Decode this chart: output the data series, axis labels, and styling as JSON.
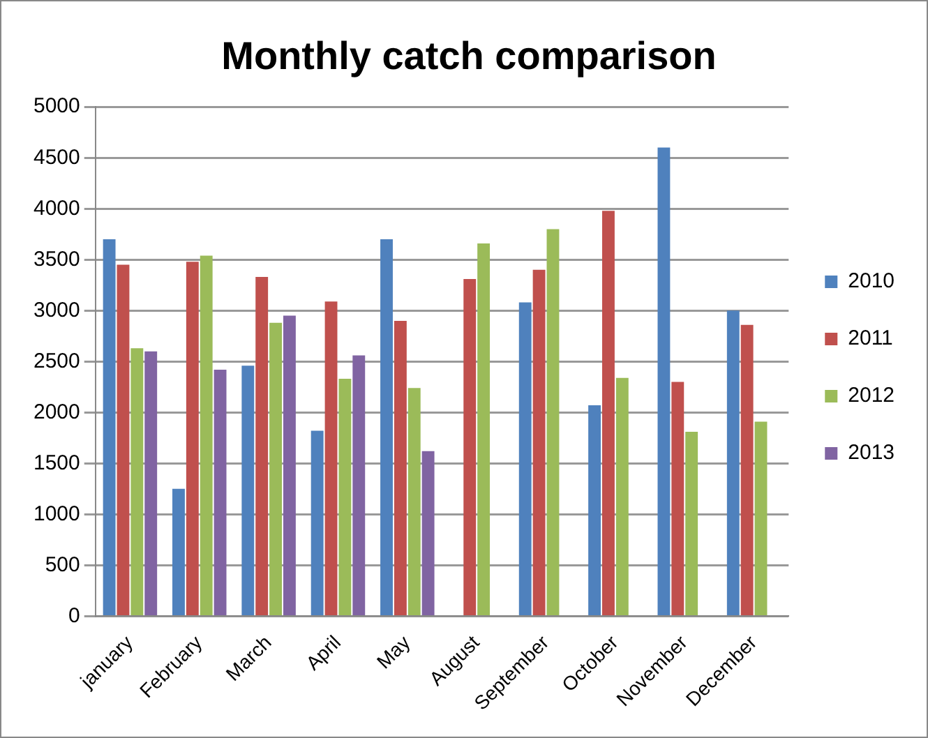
{
  "chart_data": {
    "type": "bar",
    "title": "Monthly catch comparison",
    "categories": [
      "january",
      "February",
      "March",
      "April",
      "May",
      "August",
      "September",
      "October",
      "November",
      "December"
    ],
    "series": [
      {
        "name": "2010",
        "color": "#4f81bd",
        "values": [
          3700,
          1250,
          2460,
          1820,
          3700,
          null,
          3080,
          2070,
          4600,
          3000
        ]
      },
      {
        "name": "2011",
        "color": "#c0504d",
        "values": [
          3450,
          3480,
          3330,
          3090,
          2900,
          3310,
          3400,
          3980,
          2300,
          2860
        ]
      },
      {
        "name": "2012",
        "color": "#9bbb59",
        "values": [
          2630,
          3540,
          2880,
          2330,
          2240,
          3660,
          3800,
          2340,
          1810,
          1910
        ]
      },
      {
        "name": "2013",
        "color": "#8064a2",
        "values": [
          2600,
          2420,
          2950,
          2560,
          1620,
          null,
          null,
          null,
          null,
          null
        ]
      }
    ],
    "ylim": [
      0,
      5000
    ],
    "yticks": [
      0,
      500,
      1000,
      1500,
      2000,
      2500,
      3000,
      3500,
      4000,
      4500,
      5000
    ],
    "grid": "y",
    "legend": "right"
  }
}
